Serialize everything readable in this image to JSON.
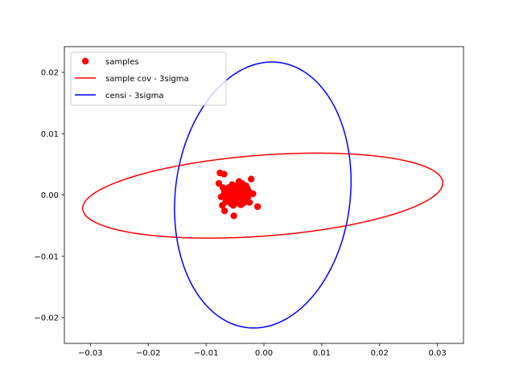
{
  "chart_data": {
    "type": "scatter",
    "title": "",
    "xlabel": "",
    "ylabel": "",
    "xlim": [
      -0.0345,
      0.0345
    ],
    "ylim": [
      -0.0242,
      0.0242
    ],
    "x_ticks": [
      -0.03,
      -0.02,
      -0.01,
      0.0,
      0.01,
      0.02,
      0.03
    ],
    "x_tick_labels": [
      "−0.03",
      "−0.02",
      "−0.01",
      "0.00",
      "0.01",
      "0.02",
      "0.03"
    ],
    "y_ticks": [
      -0.02,
      -0.01,
      0.0,
      0.01,
      0.02
    ],
    "y_tick_labels": [
      "−0.02",
      "−0.01",
      "0.00",
      "0.01",
      "0.02"
    ],
    "grid": false,
    "legend_position": "top-left",
    "series": [
      {
        "name": "samples",
        "kind": "points",
        "color": "#ff0000",
        "points": [
          [
            -0.0076,
            0.0036
          ],
          [
            -0.0069,
            0.0034
          ],
          [
            -0.0078,
            0.0019
          ],
          [
            -0.0071,
            0.0012
          ],
          [
            -0.0066,
            0.0008
          ],
          [
            -0.0061,
            0.0012
          ],
          [
            -0.0055,
            0.0017
          ],
          [
            -0.0049,
            0.0014
          ],
          [
            -0.0043,
            0.0022
          ],
          [
            -0.0038,
            0.0019
          ],
          [
            -0.0031,
            0.0015
          ],
          [
            -0.0022,
            0.0026
          ],
          [
            -0.0026,
            0.0006
          ],
          [
            -0.0031,
            0.0002
          ],
          [
            -0.0036,
            -0.0004
          ],
          [
            -0.0042,
            -0.0009
          ],
          [
            -0.0047,
            -0.0013
          ],
          [
            -0.0053,
            -0.0017
          ],
          [
            -0.0058,
            -0.0011
          ],
          [
            -0.0063,
            -0.0005
          ],
          [
            -0.0069,
            0.0001
          ],
          [
            -0.0074,
            -0.0003
          ],
          [
            -0.0072,
            -0.0017
          ],
          [
            -0.0068,
            -0.0026
          ],
          [
            -0.0052,
            -0.0034
          ],
          [
            -0.0019,
            0.0002
          ],
          [
            -0.0011,
            -0.0019
          ],
          [
            -0.0025,
            -0.0012
          ],
          [
            -0.0036,
            0.0008
          ],
          [
            -0.0045,
            0.0004
          ],
          [
            -0.0056,
            0.0003
          ],
          [
            -0.0061,
            -0.0002
          ],
          [
            -0.0049,
            -0.0005
          ],
          [
            -0.0041,
            -0.0002
          ],
          [
            -0.0033,
            -0.0008
          ],
          [
            -0.0058,
            0.0007
          ],
          [
            -0.0052,
            0.0009
          ],
          [
            -0.0047,
            0.0011
          ],
          [
            -0.0039,
            0.0005
          ],
          [
            -0.0044,
            -0.0006
          ],
          [
            -0.0066,
            -0.0011
          ],
          [
            -0.0029,
            0.0011
          ],
          [
            -0.0054,
            -0.0008
          ],
          [
            -0.0062,
            0.0005
          ],
          [
            -0.0035,
            -0.0013
          ],
          [
            -0.0046,
            0.0016
          ],
          [
            -0.0057,
            -0.0014
          ],
          [
            -0.0051,
            0.0
          ],
          [
            -0.004,
            -0.0016
          ],
          [
            -0.0068,
            0.0006
          ],
          [
            -0.0032,
            0.0004
          ],
          [
            -0.0059,
            0.001
          ],
          [
            -0.0028,
            -0.0003
          ],
          [
            -0.0043,
            0.0009
          ],
          [
            -0.0064,
            -0.0008
          ],
          [
            -0.0048,
            0.0006
          ],
          [
            -0.0037,
            0.0013
          ],
          [
            -0.0053,
            0.0015
          ]
        ]
      },
      {
        "name": "sample cov - 3sigma",
        "kind": "ellipse",
        "color": "#ff0000",
        "center": [
          -0.0002,
          -0.0001
        ],
        "semi_axes": [
          0.0312,
          0.0066
        ],
        "angle_deg": 4.0
      },
      {
        "name": "censi - 3sigma",
        "kind": "ellipse",
        "color": "#0000ff",
        "center": [
          -0.0002,
          0.0
        ],
        "semi_axes": [
          0.0151,
          0.0218
        ],
        "angle_deg": -8.0
      }
    ]
  }
}
